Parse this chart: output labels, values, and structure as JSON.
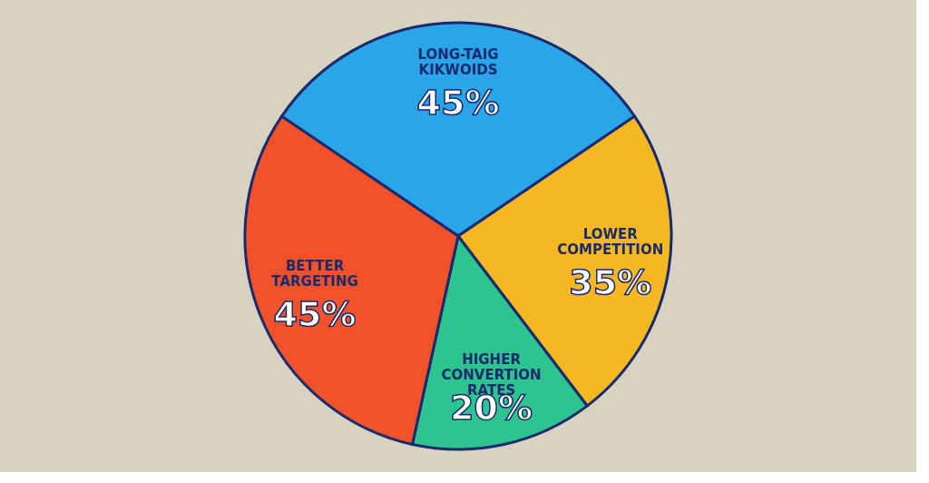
{
  "chart_data": {
    "type": "pie",
    "categories": [
      "LONG-TAIG KIKWOIDS",
      "LOWER COMPETITION",
      "HIGHER CONVERTION RATES",
      "BETTER TARGETING"
    ],
    "values": [
      45,
      35,
      20,
      45
    ],
    "value_labels": [
      "45%",
      "35%",
      "20%",
      "45%"
    ],
    "colors": [
      "#2aa6e8",
      "#f6b820",
      "#2ec48f",
      "#f2522a"
    ],
    "legend": false
  }
}
